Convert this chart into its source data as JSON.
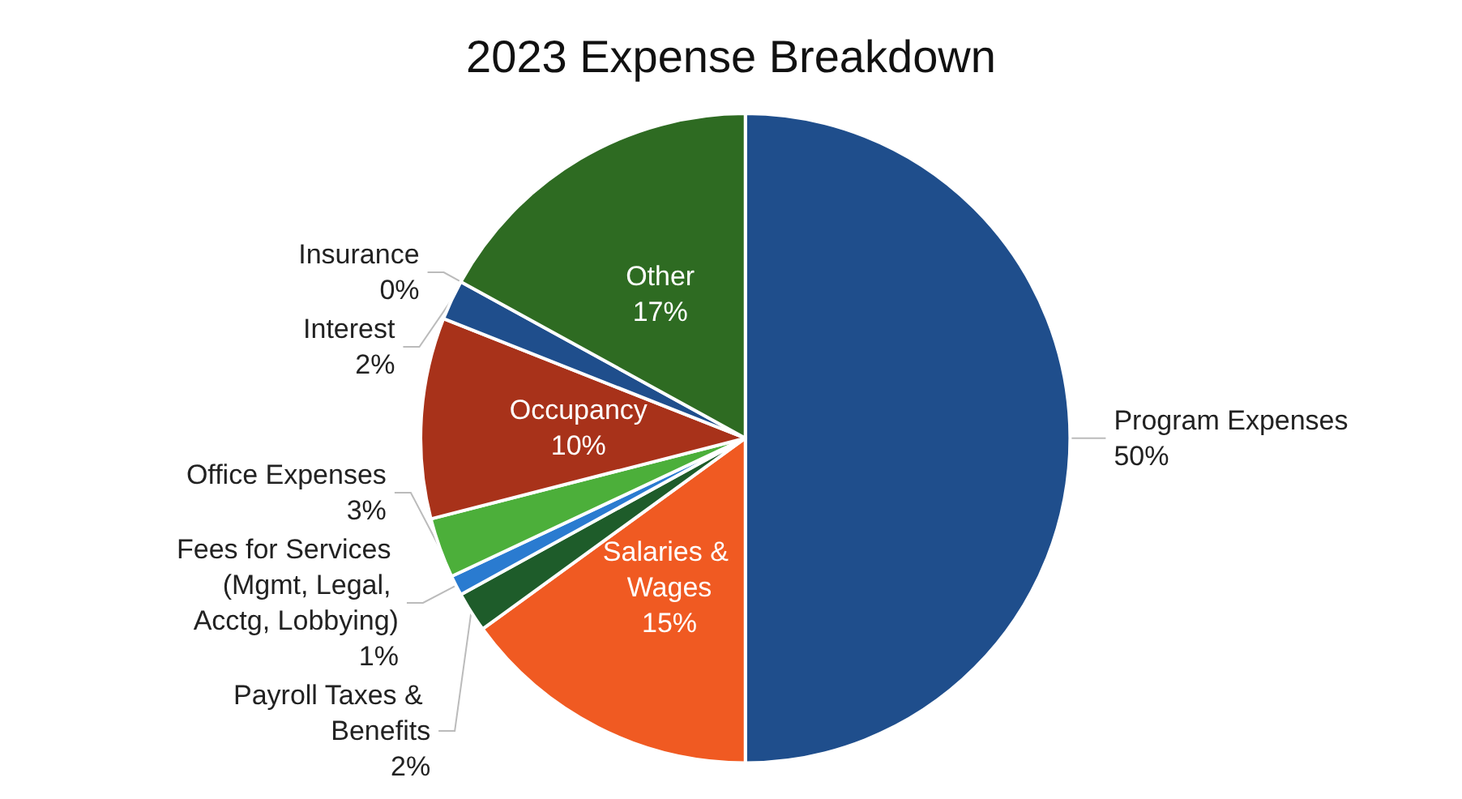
{
  "chart_data": {
    "type": "pie",
    "title": "2023 Expense Breakdown",
    "categories": [
      "Program Expenses",
      "Salaries & Wages",
      "Payroll Taxes & Benefits",
      "Fees for Services (Mgmt, Legal, Acctg, Lobbying)",
      "Office Expenses",
      "Occupancy",
      "Interest",
      "Insurance",
      "Other"
    ],
    "values": [
      50,
      15,
      2,
      1,
      3,
      10,
      2,
      0,
      17
    ],
    "value_labels": [
      "50%",
      "15%",
      "2%",
      "1%",
      "3%",
      "10%",
      "2%",
      "0%",
      "17%"
    ],
    "colors": [
      "#1f4e8c",
      "#f05a22",
      "#1e5c2a",
      "#2a7bd0",
      "#4caf3a",
      "#a8321a",
      "#1f4e8c",
      "#c8c8c8",
      "#2e6b22"
    ],
    "legend": false
  }
}
